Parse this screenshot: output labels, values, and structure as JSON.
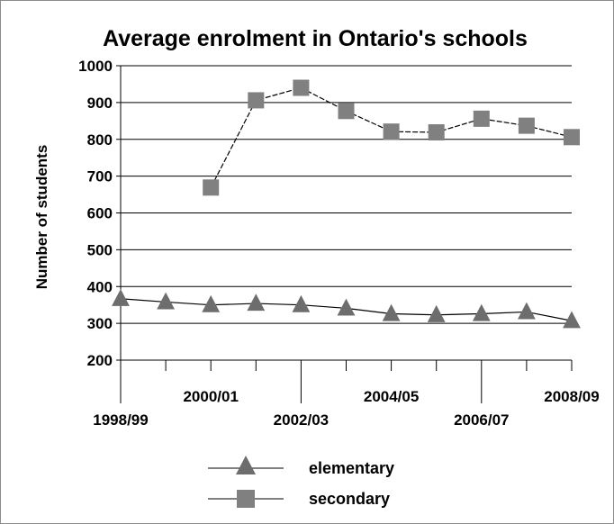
{
  "chart_data": {
    "type": "line",
    "title": "Average enrolment in Ontario's schools",
    "xlabel": "",
    "ylabel": "Number of students",
    "categories": [
      "1998/99",
      "1999/00",
      "2000/01",
      "2001/02",
      "2002/03",
      "2003/04",
      "2004/05",
      "2005/06",
      "2006/07",
      "2007/08",
      "2008/09"
    ],
    "x_tick_labels": [
      "1998/99",
      "",
      "2000/01",
      "",
      "2002/03",
      "",
      "2004/05",
      "",
      "2006/07",
      "",
      "2008/09"
    ],
    "ylim": [
      200,
      1000
    ],
    "y_ticks": [
      200,
      300,
      400,
      500,
      600,
      700,
      800,
      900,
      1000
    ],
    "grid": true,
    "legend_position": "bottom",
    "series": [
      {
        "name": "elementary",
        "marker": "triangle",
        "color": "#6d6d6d",
        "values": [
          367,
          358,
          350,
          354,
          350,
          341,
          326,
          323,
          326,
          331,
          307
        ]
      },
      {
        "name": "secondary",
        "marker": "square",
        "color": "#808080",
        "values": [
          null,
          null,
          669,
          906,
          940,
          877,
          821,
          819,
          856,
          837,
          806
        ]
      }
    ]
  }
}
